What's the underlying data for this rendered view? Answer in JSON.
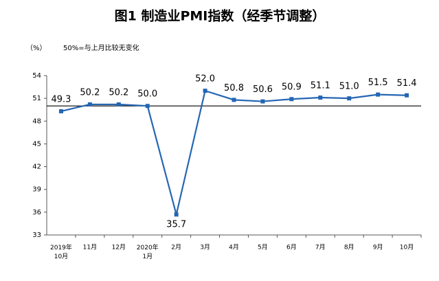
{
  "chart_data": {
    "type": "line",
    "title": "图1 制造业PMI指数（经季节调整）",
    "unit_label": "（%）",
    "note": "50%=与上月比较无变化",
    "categories": [
      "2019年\n10月",
      "11月",
      "12月",
      "2020年\n1月",
      "2月",
      "3月",
      "4月",
      "5月",
      "6月",
      "7月",
      "8月",
      "9月",
      "10月"
    ],
    "series": [
      {
        "name": "制造业PMI",
        "color": "#2466b3",
        "values": [
          49.3,
          50.2,
          50.2,
          50.0,
          35.7,
          52.0,
          50.8,
          50.6,
          50.9,
          51.1,
          51.0,
          51.5,
          51.4
        ],
        "value_labels": [
          "49.3",
          "50.2",
          "50.2",
          "50.0",
          "35.7",
          "52.0",
          "50.8",
          "50.6",
          "50.9",
          "51.1",
          "51.0",
          "51.5",
          "51.4"
        ]
      }
    ],
    "ylim": [
      33,
      54
    ],
    "yticks": [
      33,
      36,
      39,
      42,
      45,
      48,
      51,
      54
    ],
    "reference_line": 50
  }
}
